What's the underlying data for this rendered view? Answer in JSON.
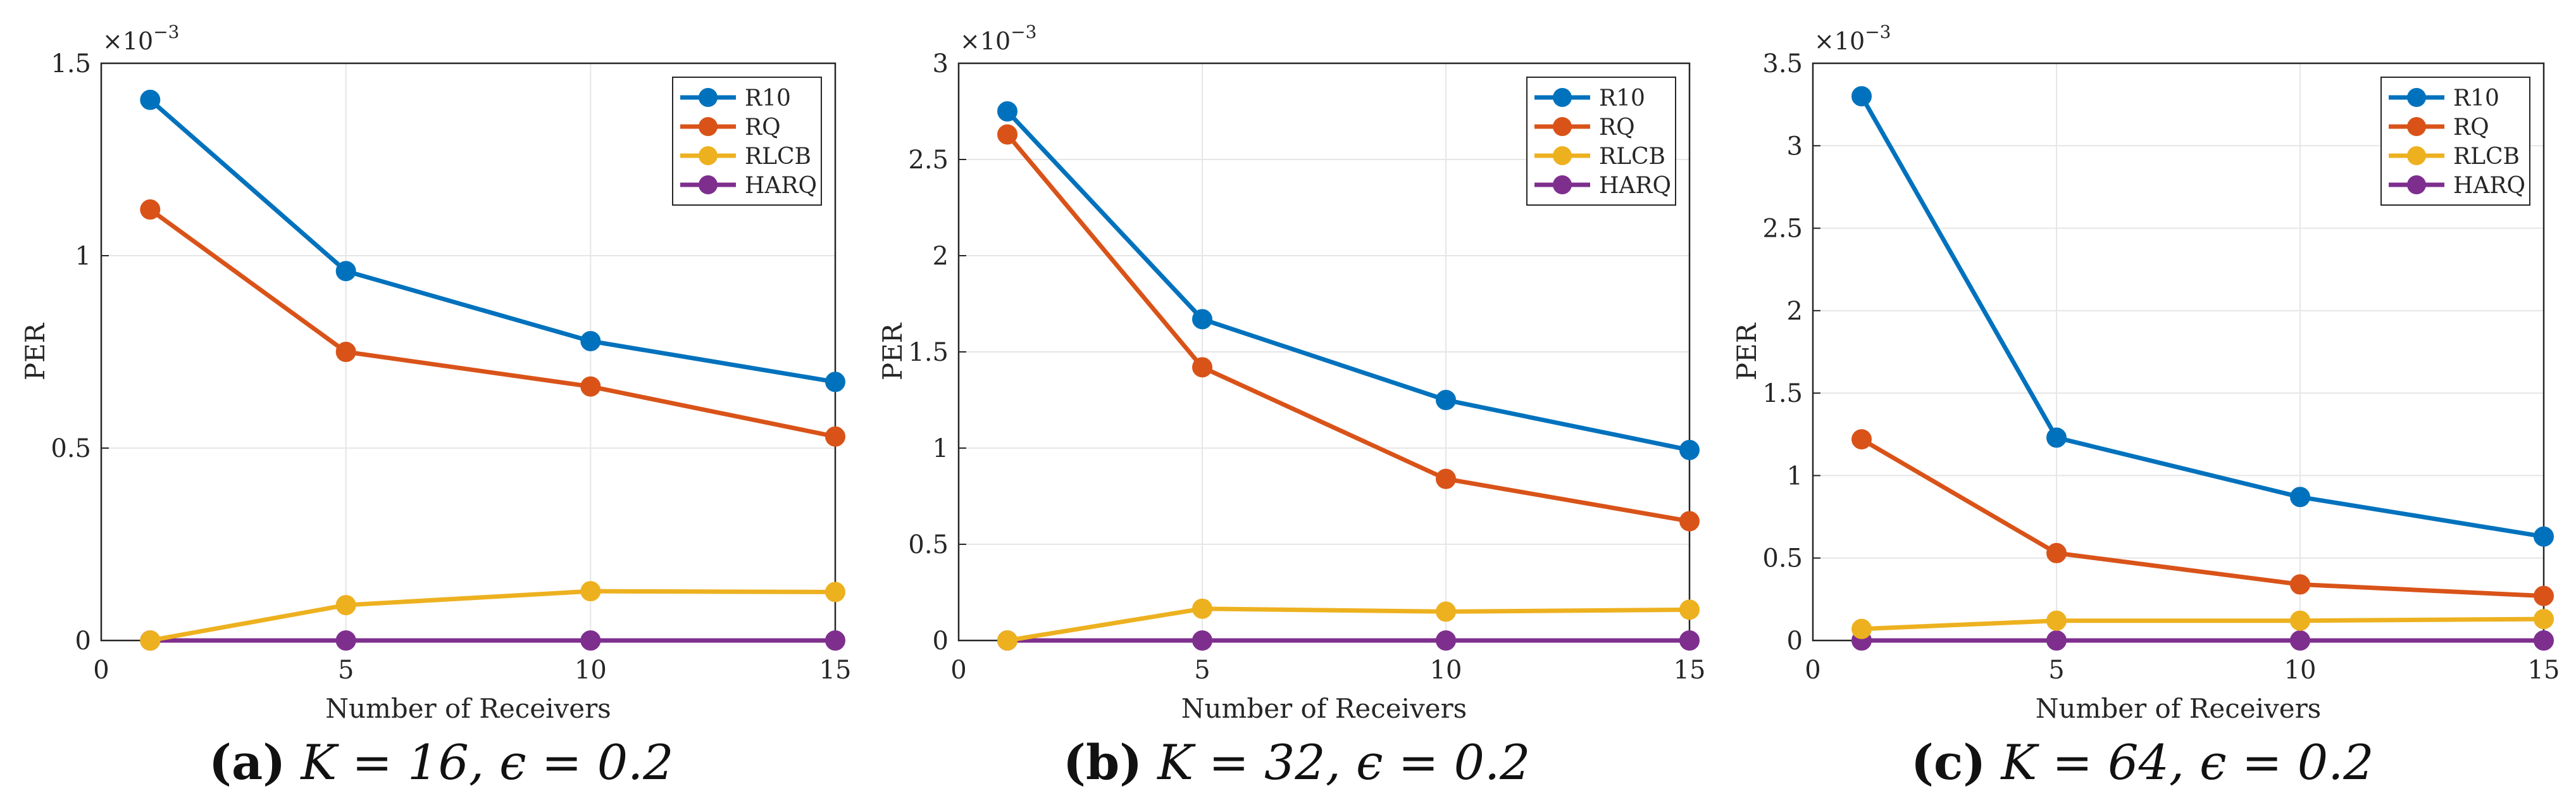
{
  "colors": {
    "R10": "#0072BD",
    "RQ": "#D95319",
    "RLCB": "#EDB120",
    "HARQ": "#7E2F8E",
    "grid": "#e6e6e6",
    "axis": "#262626"
  },
  "chart_data": [
    {
      "type": "line",
      "xlabel": "Number of Receivers",
      "ylabel": "PER",
      "multiplier": "×10^{-3}",
      "xlim": [
        0,
        15
      ],
      "ylim": [
        0,
        1.5
      ],
      "xticks": [
        "0",
        "5",
        "10",
        "15"
      ],
      "yticks": [
        "0",
        "0.5",
        "1",
        "1.5"
      ],
      "legend_position": "top-right",
      "x": [
        1,
        5,
        10,
        15
      ],
      "series": [
        {
          "name": "R10",
          "values": [
            1.405,
            0.96,
            0.778,
            0.672
          ]
        },
        {
          "name": "RQ",
          "values": [
            1.12,
            0.75,
            0.66,
            0.53
          ]
        },
        {
          "name": "RLCB",
          "values": [
            0.0,
            0.092,
            0.128,
            0.126
          ]
        },
        {
          "name": "HARQ",
          "values": [
            0.0,
            0.0,
            0.0,
            0.0
          ]
        }
      ],
      "caption": {
        "letter": "(a)",
        "math": "K = 16, ϵ = 0.2"
      }
    },
    {
      "type": "line",
      "xlabel": "Number of Receivers",
      "ylabel": "PER",
      "multiplier": "×10^{-3}",
      "xlim": [
        0,
        15
      ],
      "ylim": [
        0,
        3
      ],
      "xticks": [
        "0",
        "5",
        "10",
        "15"
      ],
      "yticks": [
        "0",
        "0.5",
        "1",
        "1.5",
        "2",
        "2.5",
        "3"
      ],
      "legend_position": "top-right",
      "x": [
        1,
        5,
        10,
        15
      ],
      "series": [
        {
          "name": "R10",
          "values": [
            2.75,
            1.67,
            1.25,
            0.99
          ]
        },
        {
          "name": "RQ",
          "values": [
            2.63,
            1.42,
            0.84,
            0.62
          ]
        },
        {
          "name": "RLCB",
          "values": [
            0.0,
            0.165,
            0.15,
            0.16
          ]
        },
        {
          "name": "HARQ",
          "values": [
            0.0,
            0.0,
            0.0,
            0.0
          ]
        }
      ],
      "caption": {
        "letter": "(b)",
        "math": "K = 32, ϵ = 0.2"
      }
    },
    {
      "type": "line",
      "xlabel": "Number of Receivers",
      "ylabel": "PER",
      "multiplier": "×10^{-3}",
      "xlim": [
        0,
        15
      ],
      "ylim": [
        0,
        3.5
      ],
      "xticks": [
        "0",
        "5",
        "10",
        "15"
      ],
      "yticks": [
        "0",
        "0.5",
        "1",
        "1.5",
        "2",
        "2.5",
        "3",
        "3.5"
      ],
      "legend_position": "top-right",
      "x": [
        1,
        5,
        10,
        15
      ],
      "series": [
        {
          "name": "R10",
          "values": [
            3.3,
            1.23,
            0.87,
            0.63
          ]
        },
        {
          "name": "RQ",
          "values": [
            1.22,
            0.53,
            0.34,
            0.27
          ]
        },
        {
          "name": "RLCB",
          "values": [
            0.07,
            0.12,
            0.12,
            0.13
          ]
        },
        {
          "name": "HARQ",
          "values": [
            0.0,
            0.0,
            0.0,
            0.0
          ]
        }
      ],
      "caption": {
        "letter": "(c)",
        "math": "K = 64, ϵ = 0.2"
      }
    }
  ]
}
